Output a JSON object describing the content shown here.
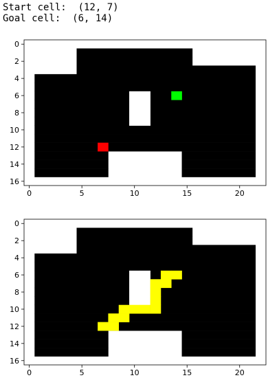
{
  "header": {
    "start_label": "Start cell:",
    "start_value": "(12, 7)",
    "goal_label": "Goal cell:",
    "goal_value": "(6, 14)"
  },
  "chart_data": [
    {
      "type": "heatmap",
      "title": "",
      "xlabel": "",
      "ylabel": "",
      "xlim": [
        -0.5,
        22.5
      ],
      "ylim": [
        16.5,
        -0.5
      ],
      "x_ticks": [
        0,
        5,
        10,
        15,
        20
      ],
      "y_ticks": [
        0,
        2,
        4,
        6,
        8,
        10,
        12,
        14,
        16
      ],
      "grid": false,
      "grid_rows": 17,
      "grid_cols": 23,
      "colors": {
        "free": "#000000",
        "wall": "#ffffff",
        "start": "#ff0000",
        "goal": "#00ff00"
      },
      "black_region_rows": [
        [
          1,
          5,
          15
        ],
        [
          2,
          5,
          15
        ],
        [
          3,
          5,
          21
        ],
        [
          4,
          1,
          21
        ],
        [
          5,
          1,
          21
        ],
        [
          6,
          1,
          21
        ],
        [
          7,
          1,
          21
        ],
        [
          8,
          1,
          21
        ],
        [
          9,
          1,
          21
        ],
        [
          10,
          1,
          21
        ],
        [
          11,
          1,
          21
        ],
        [
          12,
          1,
          21
        ],
        [
          13,
          1,
          7
        ],
        [
          13,
          15,
          21
        ],
        [
          14,
          1,
          7
        ],
        [
          14,
          15,
          21
        ],
        [
          15,
          1,
          7
        ],
        [
          15,
          15,
          21
        ]
      ],
      "white_cells": [
        [
          6,
          10
        ],
        [
          6,
          11
        ],
        [
          7,
          10
        ],
        [
          7,
          11
        ],
        [
          8,
          10
        ],
        [
          8,
          11
        ],
        [
          9,
          10
        ],
        [
          9,
          11
        ]
      ],
      "start_cell": [
        12,
        7
      ],
      "goal_cell": [
        6,
        14
      ]
    },
    {
      "type": "heatmap",
      "title": "",
      "xlabel": "",
      "ylabel": "",
      "xlim": [
        -0.5,
        22.5
      ],
      "ylim": [
        16.5,
        -0.5
      ],
      "x_ticks": [
        0,
        5,
        10,
        15,
        20
      ],
      "y_ticks": [
        0,
        2,
        4,
        6,
        8,
        10,
        12,
        14,
        16
      ],
      "grid": false,
      "grid_rows": 17,
      "grid_cols": 23,
      "colors": {
        "free": "#000000",
        "wall": "#ffffff",
        "path": "#ffff00"
      },
      "black_region_rows": [
        [
          1,
          5,
          15
        ],
        [
          2,
          5,
          15
        ],
        [
          3,
          5,
          21
        ],
        [
          4,
          1,
          21
        ],
        [
          5,
          1,
          21
        ],
        [
          6,
          1,
          21
        ],
        [
          7,
          1,
          21
        ],
        [
          8,
          1,
          21
        ],
        [
          9,
          1,
          21
        ],
        [
          10,
          1,
          21
        ],
        [
          11,
          1,
          21
        ],
        [
          12,
          1,
          21
        ],
        [
          13,
          1,
          7
        ],
        [
          13,
          15,
          21
        ],
        [
          14,
          1,
          7
        ],
        [
          14,
          15,
          21
        ],
        [
          15,
          1,
          7
        ],
        [
          15,
          15,
          21
        ]
      ],
      "white_cells": [
        [
          6,
          10
        ],
        [
          6,
          11
        ],
        [
          7,
          10
        ],
        [
          7,
          11
        ],
        [
          8,
          10
        ],
        [
          8,
          11
        ],
        [
          9,
          10
        ],
        [
          9,
          11
        ]
      ],
      "path_cells": [
        [
          6,
          13
        ],
        [
          6,
          14
        ],
        [
          7,
          12
        ],
        [
          7,
          13
        ],
        [
          8,
          12
        ],
        [
          9,
          12
        ],
        [
          10,
          9
        ],
        [
          10,
          10
        ],
        [
          10,
          11
        ],
        [
          10,
          12
        ],
        [
          11,
          8
        ],
        [
          11,
          9
        ],
        [
          12,
          7
        ],
        [
          12,
          8
        ]
      ]
    }
  ]
}
